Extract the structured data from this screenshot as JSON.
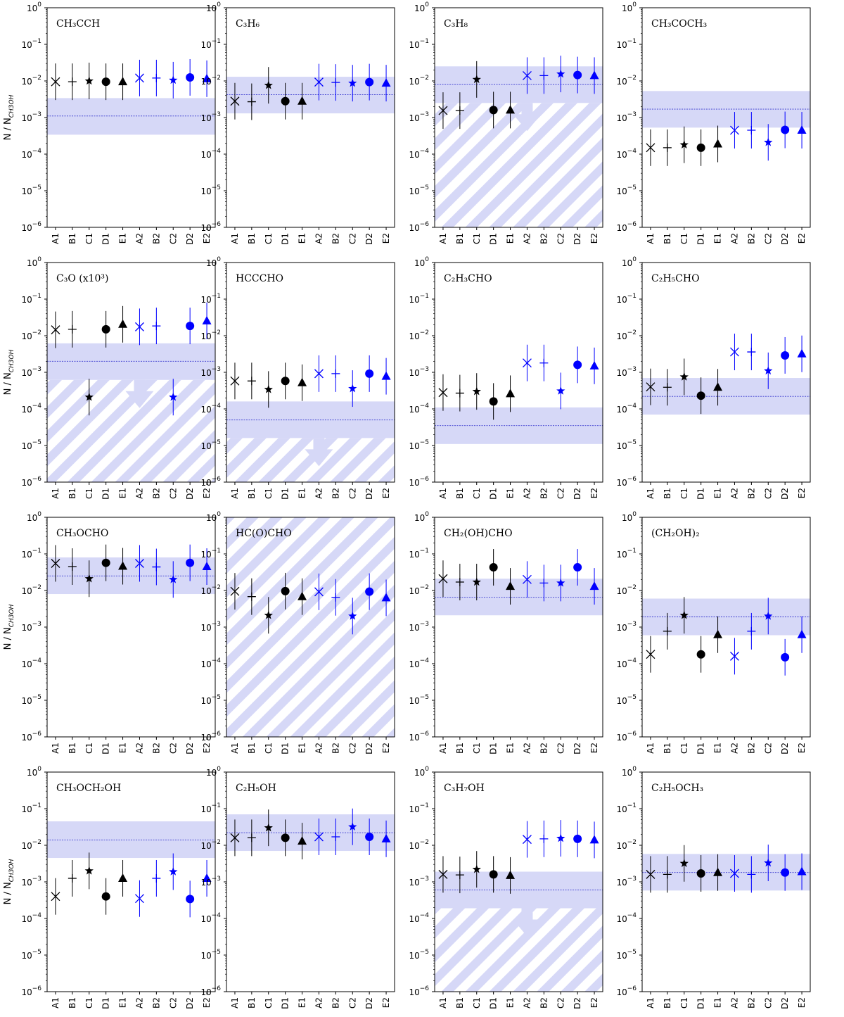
{
  "figure": {
    "y_axis_label": "N / N",
    "y_axis_label_sub": "CH3OH",
    "y_ticks": [
      "10",
      "10",
      "10",
      "10",
      "10",
      "10",
      "10"
    ],
    "y_tick_exponents": [
      "0",
      "−1",
      "−2",
      "−3",
      "−4",
      "−5",
      "−6"
    ],
    "y_tick_values": [
      1,
      0.1,
      0.01,
      0.001,
      0.0001,
      1e-05,
      1e-06
    ],
    "x_tick_labels": [
      "A1",
      "B1",
      "C1",
      "D1",
      "E1",
      "A2",
      "B2",
      "C2",
      "D2",
      "E2"
    ]
  },
  "chart_data": [
    {
      "type": "scatter",
      "title": "CH₃CCH",
      "ylim": [
        1e-06,
        1
      ],
      "yscale": "log",
      "band": {
        "center": 0.0011,
        "low": 0.00034,
        "high": 0.0034,
        "upper_limit": false,
        "hatched": false
      },
      "values": [
        0.0095,
        0.0095,
        0.01,
        0.0095,
        0.0095,
        0.012,
        0.012,
        0.0105,
        0.0125,
        0.0115
      ]
    },
    {
      "type": "scatter",
      "title": "C₃H₆",
      "ylim": [
        1e-06,
        1
      ],
      "yscale": "log",
      "band": {
        "center": 0.0042,
        "low": 0.0013,
        "high": 0.013,
        "upper_limit": false,
        "hatched": false
      },
      "values": [
        0.0028,
        0.0027,
        0.0076,
        0.0028,
        0.0028,
        0.0093,
        0.0091,
        0.0087,
        0.0093,
        0.0087
      ]
    },
    {
      "type": "scatter",
      "title": "C₃H₈",
      "ylim": [
        1e-06,
        1
      ],
      "yscale": "log",
      "band": {
        "center": 0.008,
        "low": 0.0025,
        "high": 0.025,
        "upper_limit": true,
        "hatched": true
      },
      "values": [
        0.00155,
        0.00155,
        0.011,
        0.0016,
        0.0016,
        0.014,
        0.014,
        0.0155,
        0.0145,
        0.014
      ]
    },
    {
      "type": "scatter",
      "title": "CH₃COCH₃",
      "ylim": [
        1e-06,
        1
      ],
      "yscale": "log",
      "band": {
        "center": 0.0017,
        "low": 0.00053,
        "high": 0.0053,
        "upper_limit": false,
        "hatched": false
      },
      "values": [
        0.00015,
        0.00015,
        0.00018,
        0.00015,
        0.00019,
        0.00045,
        0.00045,
        0.00021,
        0.00046,
        0.00045
      ]
    },
    {
      "type": "scatter",
      "title": "C₃O (x10³)",
      "ylim": [
        1e-06,
        1
      ],
      "yscale": "log",
      "band": {
        "center": 0.002,
        "low": 0.00062,
        "high": 0.0062,
        "upper_limit": true,
        "hatched": true
      },
      "values": [
        0.0145,
        0.015,
        0.00021,
        0.015,
        0.0205,
        0.0175,
        0.0185,
        0.00021,
        0.0185,
        0.0255
      ]
    },
    {
      "type": "scatter",
      "title": "HCCCHO",
      "ylim": [
        1e-06,
        1
      ],
      "yscale": "log",
      "band": {
        "center": 5e-05,
        "low": 1.6e-05,
        "high": 0.00016,
        "upper_limit": true,
        "hatched": true
      },
      "values": [
        0.00058,
        0.00058,
        0.00034,
        0.00058,
        0.00052,
        0.00092,
        0.00092,
        0.00036,
        0.00092,
        0.00078
      ]
    },
    {
      "type": "scatter",
      "title": "C₂H₃CHO",
      "ylim": [
        1e-06,
        1
      ],
      "yscale": "log",
      "band": {
        "center": 3.5e-05,
        "low": 1.1e-05,
        "high": 0.00011,
        "upper_limit": false,
        "hatched": false
      },
      "values": [
        0.00028,
        0.00027,
        0.0003,
        0.00016,
        0.00026,
        0.0018,
        0.0018,
        0.00031,
        0.0016,
        0.0015
      ]
    },
    {
      "type": "scatter",
      "title": "C₂H₅CHO",
      "ylim": [
        1e-06,
        1
      ],
      "yscale": "log",
      "band": {
        "center": 0.00022,
        "low": 7e-05,
        "high": 0.0007,
        "upper_limit": false,
        "hatched": false
      },
      "values": [
        0.0004,
        0.00039,
        0.00075,
        0.00023,
        0.00039,
        0.0036,
        0.0036,
        0.0011,
        0.0029,
        0.0032
      ]
    },
    {
      "type": "scatter",
      "title": "CH₃OCHO",
      "ylim": [
        1e-06,
        1
      ],
      "yscale": "log",
      "band": {
        "center": 0.025,
        "low": 0.008,
        "high": 0.08,
        "upper_limit": false,
        "hatched": false
      },
      "values": [
        0.055,
        0.045,
        0.021,
        0.057,
        0.046,
        0.055,
        0.044,
        0.02,
        0.057,
        0.045
      ]
    },
    {
      "type": "scatter",
      "title": "HC(O)CHO",
      "ylim": [
        1e-06,
        1
      ],
      "yscale": "log",
      "band": null,
      "full_hatch": true,
      "values": [
        0.0095,
        0.0068,
        0.0021,
        0.0096,
        0.0068,
        0.0092,
        0.0065,
        0.002,
        0.0093,
        0.0063
      ]
    },
    {
      "type": "scatter",
      "title": "CH₂(OH)CHO",
      "ylim": [
        1e-06,
        1
      ],
      "yscale": "log",
      "band": {
        "center": 0.0065,
        "low": 0.0021,
        "high": 0.021,
        "upper_limit": false,
        "hatched": false
      },
      "values": [
        0.021,
        0.017,
        0.017,
        0.043,
        0.013,
        0.02,
        0.016,
        0.016,
        0.043,
        0.013
      ]
    },
    {
      "type": "scatter",
      "title": "(CH₂OH)₂",
      "ylim": [
        1e-06,
        1
      ],
      "yscale": "log",
      "band": {
        "center": 0.0019,
        "low": 0.0006,
        "high": 0.006,
        "upper_limit": false,
        "hatched": false
      },
      "values": [
        0.00018,
        0.00077,
        0.0021,
        0.00018,
        0.00062,
        0.00016,
        0.00077,
        0.002,
        0.00015,
        0.00062
      ]
    },
    {
      "type": "scatter",
      "title": "CH₃OCH₂OH",
      "ylim": [
        1e-06,
        1
      ],
      "yscale": "log",
      "band": {
        "center": 0.014,
        "low": 0.0045,
        "high": 0.045,
        "upper_limit": false,
        "hatched": false
      },
      "values": [
        0.0004,
        0.00125,
        0.002,
        0.0004,
        0.00125,
        0.00035,
        0.00125,
        0.0019,
        0.00034,
        0.00125
      ]
    },
    {
      "type": "scatter",
      "title": "C₂H₅OH",
      "ylim": [
        1e-06,
        1
      ],
      "yscale": "log",
      "band": {
        "center": 0.022,
        "low": 0.007,
        "high": 0.07,
        "upper_limit": false,
        "hatched": false
      },
      "values": [
        0.016,
        0.016,
        0.03,
        0.016,
        0.013,
        0.017,
        0.017,
        0.032,
        0.017,
        0.015
      ]
    },
    {
      "type": "scatter",
      "title": "C₃H₇OH",
      "ylim": [
        1e-06,
        1
      ],
      "yscale": "log",
      "band": {
        "center": 0.0006,
        "low": 0.00019,
        "high": 0.0019,
        "upper_limit": true,
        "hatched": true
      },
      "values": [
        0.0016,
        0.00155,
        0.0022,
        0.0016,
        0.0015,
        0.0145,
        0.015,
        0.0155,
        0.015,
        0.014
      ]
    },
    {
      "type": "scatter",
      "title": "C₂H₅OCH₃",
      "ylim": [
        1e-06,
        1
      ],
      "yscale": "log",
      "band": {
        "center": 0.0018,
        "low": 0.00058,
        "high": 0.0058,
        "upper_limit": false,
        "hatched": false
      },
      "values": [
        0.0016,
        0.0016,
        0.0032,
        0.0017,
        0.0018,
        0.0017,
        0.0016,
        0.0033,
        0.0018,
        0.0019
      ]
    }
  ],
  "series": [
    {
      "name": "1",
      "color": "#000000",
      "markers": [
        "x",
        "plus",
        "star",
        "circle",
        "triangle"
      ]
    },
    {
      "name": "2",
      "color": "#0000ff",
      "markers": [
        "x",
        "plus",
        "star",
        "circle",
        "triangle"
      ]
    }
  ],
  "band_color": "#d6d8f7",
  "center_line_color": "#3a3acf",
  "error_factor": 3.16
}
